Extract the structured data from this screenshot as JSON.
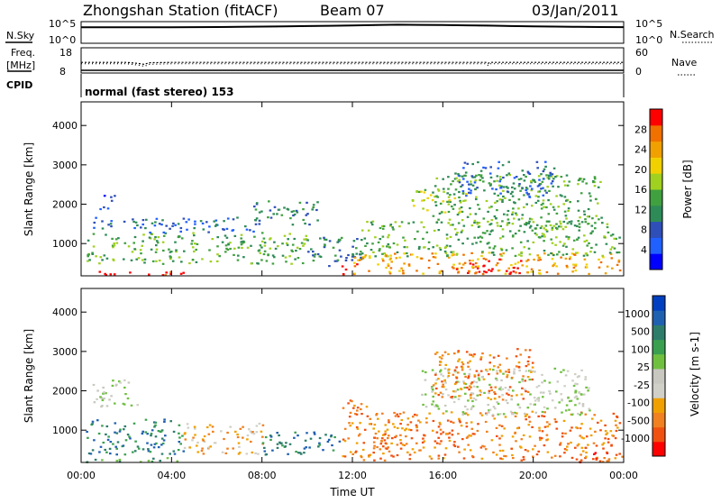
{
  "header": {
    "station": "Zhongshan Station (fitACF)",
    "beam": "Beam 07",
    "date": "03/Jan/2011"
  },
  "labels": {
    "nsky": "N.Sky",
    "nsearch": "N.Search",
    "freq": "Freq.",
    "mhz": "[MHz]",
    "nave": "Nave",
    "cpid": "CPID",
    "cpid_value": "normal (fast stereo) 153"
  },
  "chart_data": [
    {
      "type": "line",
      "name": "noise-panel",
      "left_axis_ticks": [
        "10^5",
        "10^0"
      ],
      "right_axis_ticks": [
        "10^5",
        "10^0"
      ],
      "x": [
        0,
        1,
        2,
        3,
        4,
        5,
        6,
        7,
        8,
        9,
        10,
        11,
        12,
        13,
        14,
        15,
        16,
        17,
        18,
        19,
        20,
        21,
        22,
        23,
        24
      ],
      "series": [
        {
          "name": "N.Sky",
          "values": [
            12000.0,
            13000.0,
            12000.0,
            13000.0,
            12000.0,
            14000.0,
            15000.0,
            18000.0,
            20000.0,
            25000.0,
            30000.0,
            35000.0,
            45000.0,
            60000.0,
            75000.0,
            70000.0,
            65000.0,
            50000.0,
            40000.0,
            30000.0,
            25000.0,
            20000.0,
            17000.0,
            15000.0,
            14000.0
          ]
        },
        {
          "name": "N.Search",
          "values": [
            11000.0,
            11000.0,
            11000.0,
            12000.0,
            11000.0,
            12000.0,
            13000.0,
            15000.0,
            18000.0,
            20000.0,
            24000.0,
            30000.0,
            38000.0,
            50000.0,
            62000.0,
            60000.0,
            55000.0,
            42000.0,
            34000.0,
            26000.0,
            22000.0,
            18000.0,
            15000.0,
            13000.0,
            12000.0
          ]
        }
      ]
    },
    {
      "type": "line",
      "name": "frequency-nave-panel",
      "left_axis_ticks": [
        "18",
        "8"
      ],
      "right_axis_ticks": [
        "60",
        "0"
      ],
      "x": [
        0,
        2,
        2.5,
        2.8,
        3,
        4,
        8,
        12,
        16,
        17.9,
        18,
        18.1,
        20,
        24
      ],
      "series": [
        {
          "name": "Freq.",
          "values": [
            12,
            12,
            11.5,
            11,
            11.8,
            12,
            12,
            12,
            12,
            12,
            11.5,
            12,
            12,
            12
          ]
        },
        {
          "name": "Nave",
          "values": [
            20,
            20,
            16,
            12,
            18,
            20,
            20,
            20,
            20,
            20,
            15,
            20,
            20,
            20
          ]
        }
      ]
    },
    {
      "type": "heatmap",
      "name": "power-panel",
      "ylabel": "Slant Range [km]",
      "x_ticks": [
        "00:00",
        "04:00",
        "08:00",
        "12:00",
        "16:00",
        "20:00",
        "00:00"
      ],
      "y_ticks": [
        1000,
        2000,
        3000,
        4000
      ],
      "ylim": [
        180,
        4600
      ],
      "xlim": [
        0,
        24
      ],
      "colorbar": {
        "label": "Power [dB]",
        "ticks": [
          "4",
          "8",
          "12",
          "16",
          "20",
          "24",
          "28"
        ],
        "colors": [
          "#0000ff",
          "#2060ff",
          "#2f4fb8",
          "#2e8b57",
          "#40a040",
          "#a0d020",
          "#f0d000",
          "#f0a000",
          "#f07000",
          "#ff0000"
        ]
      },
      "regions": [
        {
          "t0": 0.0,
          "t1": 4.5,
          "r0": 200,
          "r1": 320,
          "level": 9
        },
        {
          "t0": 0.2,
          "t1": 10.0,
          "r0": 500,
          "r1": 1300,
          "level": 4
        },
        {
          "t0": 0.3,
          "t1": 3.0,
          "r0": 1400,
          "r1": 1700,
          "level": 2
        },
        {
          "t0": 0.8,
          "t1": 1.5,
          "r0": 1900,
          "r1": 2300,
          "level": 1
        },
        {
          "t0": 3.0,
          "t1": 8.0,
          "r0": 1300,
          "r1": 1700,
          "level": 2
        },
        {
          "t0": 7.5,
          "t1": 10.5,
          "r0": 1500,
          "r1": 2100,
          "level": 3
        },
        {
          "t0": 10.0,
          "t1": 12.5,
          "r0": 400,
          "r1": 1200,
          "level": 3
        },
        {
          "t0": 11.5,
          "t1": 12.2,
          "r0": 200,
          "r1": 600,
          "level": 9
        },
        {
          "t0": 12.0,
          "t1": 23.8,
          "r0": 250,
          "r1": 800,
          "level": 7
        },
        {
          "t0": 12.3,
          "t1": 23.8,
          "r0": 700,
          "r1": 1600,
          "level": 4
        },
        {
          "t0": 15.5,
          "t1": 23.0,
          "r0": 1400,
          "r1": 2800,
          "level": 4
        },
        {
          "t0": 16.5,
          "t1": 21.0,
          "r0": 2200,
          "r1": 3100,
          "level": 2
        },
        {
          "t0": 14.5,
          "t1": 17.0,
          "r0": 1800,
          "r1": 2400,
          "level": 5
        },
        {
          "t0": 16.5,
          "t1": 19.5,
          "r0": 250,
          "r1": 650,
          "level": 9
        }
      ]
    },
    {
      "type": "heatmap",
      "name": "velocity-panel",
      "ylabel": "Slant Range [km]",
      "xlabel": "Time UT",
      "x_ticks": [
        "00:00",
        "04:00",
        "08:00",
        "12:00",
        "16:00",
        "20:00",
        "00:00"
      ],
      "y_ticks": [
        1000,
        2000,
        3000,
        4000
      ],
      "ylim": [
        180,
        4600
      ],
      "xlim": [
        0,
        24
      ],
      "colorbar": {
        "label": "Velocity [m s-1]",
        "ticks": [
          "1000",
          "500",
          "100",
          "25",
          "-25",
          "-100",
          "-500",
          "-1000"
        ],
        "colors": [
          "#0040c0",
          "#2060b0",
          "#2e7d6a",
          "#3aa050",
          "#70c040",
          "#c8c8c0",
          "#d0d0c8",
          "#f0a000",
          "#f08020",
          "#f05010",
          "#ff0000"
        ]
      },
      "regions": [
        {
          "t0": 0.0,
          "t1": 4.5,
          "r0": 200,
          "r1": 320,
          "level": 3
        },
        {
          "t0": 0.2,
          "t1": 4.5,
          "r0": 400,
          "r1": 1300,
          "level": 2
        },
        {
          "t0": 4.5,
          "t1": 8.0,
          "r0": 400,
          "r1": 1200,
          "level": 7
        },
        {
          "t0": 8.0,
          "t1": 11.5,
          "r0": 400,
          "r1": 1000,
          "level": 2
        },
        {
          "t0": 11.5,
          "t1": 13.0,
          "r0": 250,
          "r1": 1800,
          "level": 8
        },
        {
          "t0": 13.0,
          "t1": 23.8,
          "r0": 250,
          "r1": 1500,
          "level": 8
        },
        {
          "t0": 15.0,
          "t1": 22.5,
          "r0": 1400,
          "r1": 2600,
          "level": 5
        },
        {
          "t0": 15.5,
          "t1": 20.0,
          "r0": 1800,
          "r1": 3100,
          "level": 8
        },
        {
          "t0": 0.5,
          "t1": 2.5,
          "r0": 1600,
          "r1": 2300,
          "level": 5
        },
        {
          "t0": 22.0,
          "t1": 23.9,
          "r0": 200,
          "r1": 500,
          "level": 9
        }
      ]
    }
  ]
}
